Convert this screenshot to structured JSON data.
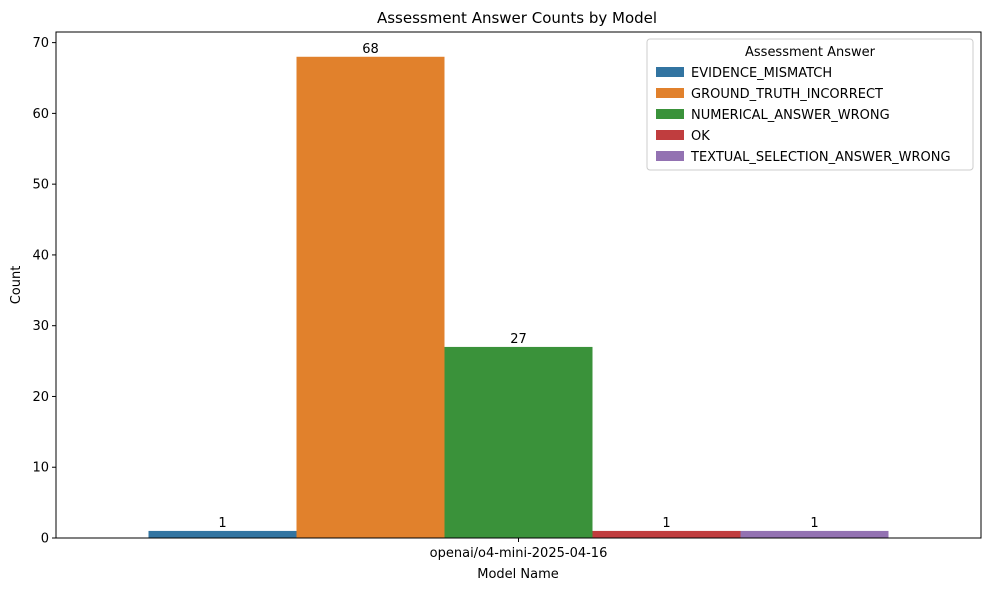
{
  "chart_data": {
    "type": "bar",
    "title": "Assessment Answer Counts by Model",
    "xlabel": "Model Name",
    "ylabel": "Count",
    "categories": [
      "openai/o4-mini-2025-04-16"
    ],
    "ylim": [
      0,
      71.5
    ],
    "yticks": [
      0,
      10,
      20,
      30,
      40,
      50,
      60,
      70
    ],
    "legend": {
      "title": "Assessment Answer",
      "position": "top-right"
    },
    "series": [
      {
        "name": "EVIDENCE_MISMATCH",
        "values": [
          1
        ],
        "color": "#3274a1"
      },
      {
        "name": "GROUND_TRUTH_INCORRECT",
        "values": [
          68
        ],
        "color": "#e1812c"
      },
      {
        "name": "NUMERICAL_ANSWER_WRONG",
        "values": [
          27
        ],
        "color": "#3a923a"
      },
      {
        "name": "OK",
        "values": [
          1
        ],
        "color": "#c03d3e"
      },
      {
        "name": "TEXTUAL_SELECTION_ANSWER_WRONG",
        "values": [
          1
        ],
        "color": "#9372b2"
      }
    ]
  }
}
